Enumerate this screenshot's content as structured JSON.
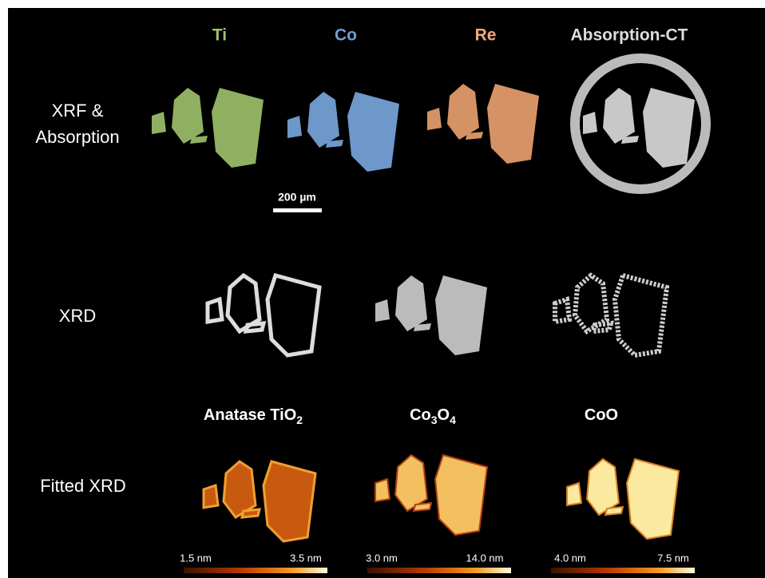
{
  "column_headers": [
    "Ti",
    "Co",
    "Re",
    "Absorption-CT"
  ],
  "row_labels": {
    "xrf": [
      "XRF &",
      "Absorption"
    ],
    "xrd": "XRD",
    "fitted": "Fitted XRD"
  },
  "scale_bar": "200 µm",
  "phase_labels": [
    [
      "Anatase TiO",
      "2"
    ],
    [
      "Co",
      "3",
      "O",
      "4"
    ],
    [
      "CoO"
    ]
  ],
  "colorbars": [
    [
      "1.5 nm",
      "3.5 nm"
    ],
    [
      "3.0 nm",
      "14.0 nm"
    ],
    [
      "4.0 nm",
      "7.5 nm"
    ]
  ]
}
